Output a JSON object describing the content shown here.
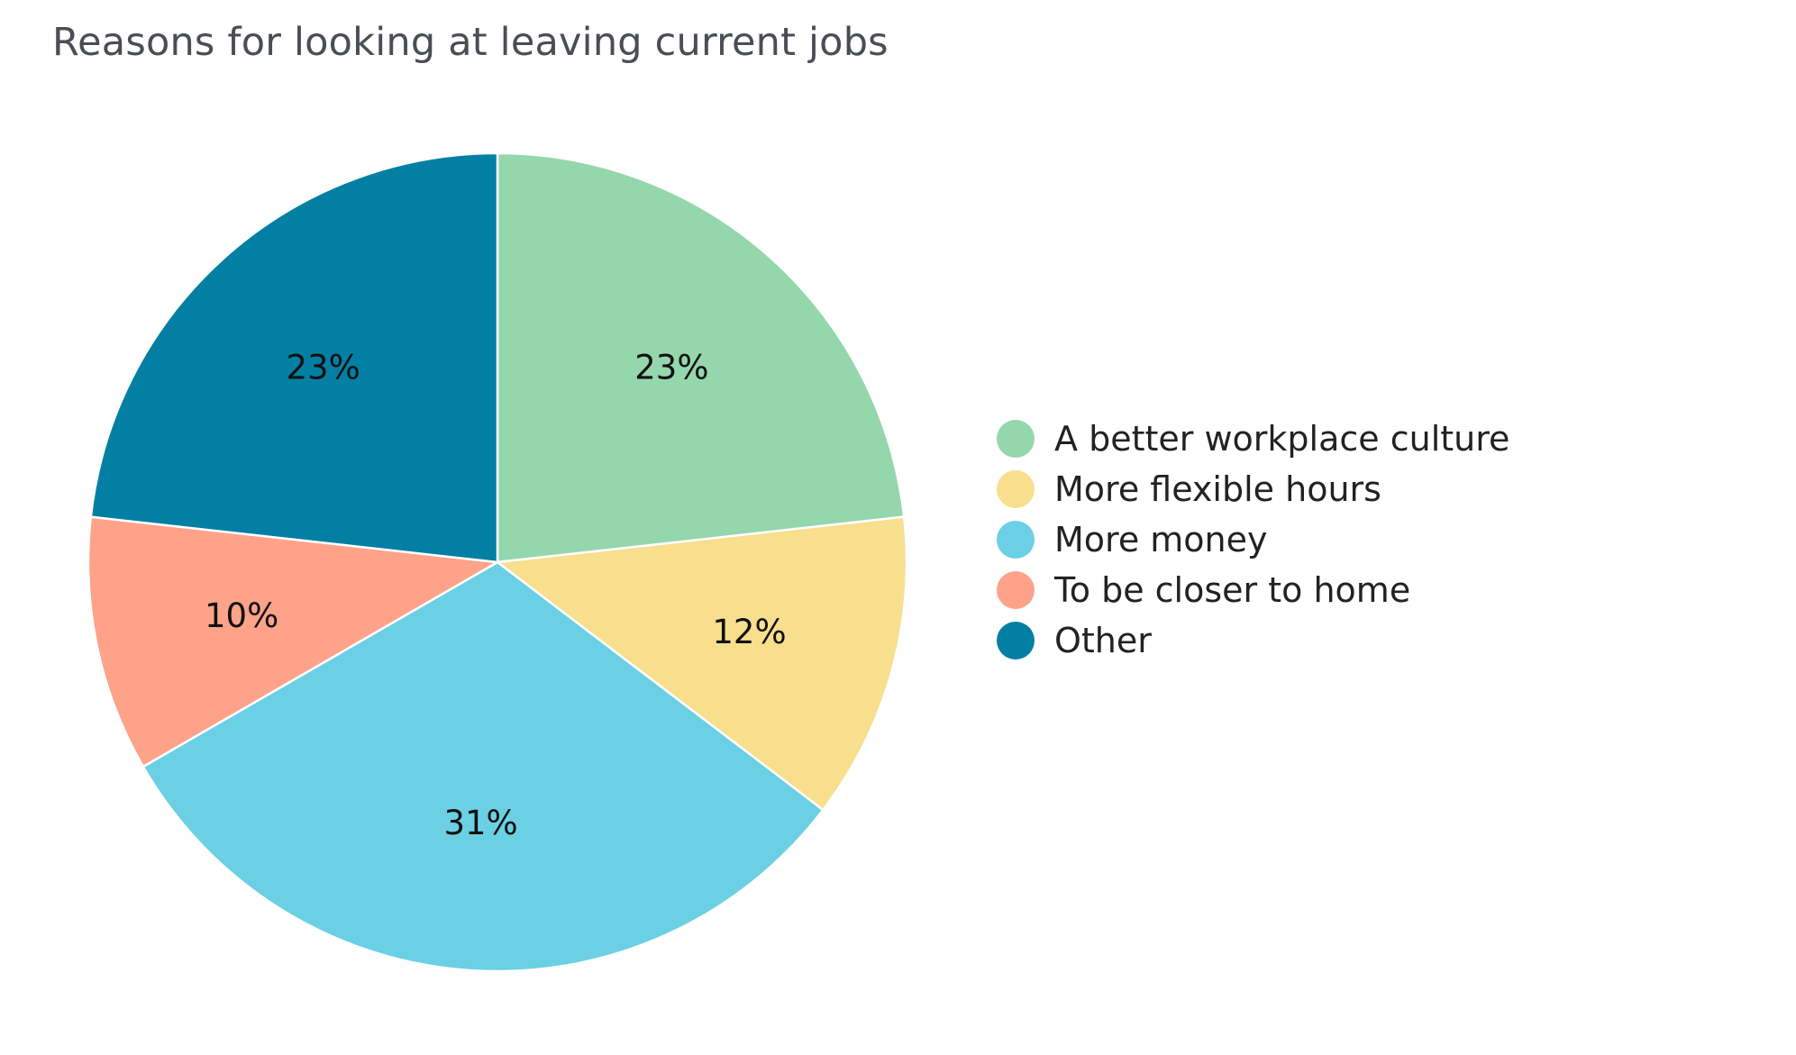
{
  "title": "Reasons for looking at leaving current jobs",
  "chart_data": {
    "type": "pie",
    "title": "Reasons for looking at leaving current jobs",
    "legend_position": "right",
    "slices": [
      {
        "name": "A better workplace culture",
        "value": 23,
        "label": "23%",
        "color": "#95d7ad"
      },
      {
        "name": "More flexible hours",
        "value": 12,
        "label": "12%",
        "color": "#f7df8e"
      },
      {
        "name": "More money",
        "value": 31,
        "label": "31%",
        "color": "#6bd0e4"
      },
      {
        "name": "To be closer to home",
        "value": 10,
        "label": "10%",
        "color": "#fea38a"
      },
      {
        "name": "Other",
        "value": 23,
        "label": "23%",
        "color": "#047fa4"
      }
    ]
  }
}
